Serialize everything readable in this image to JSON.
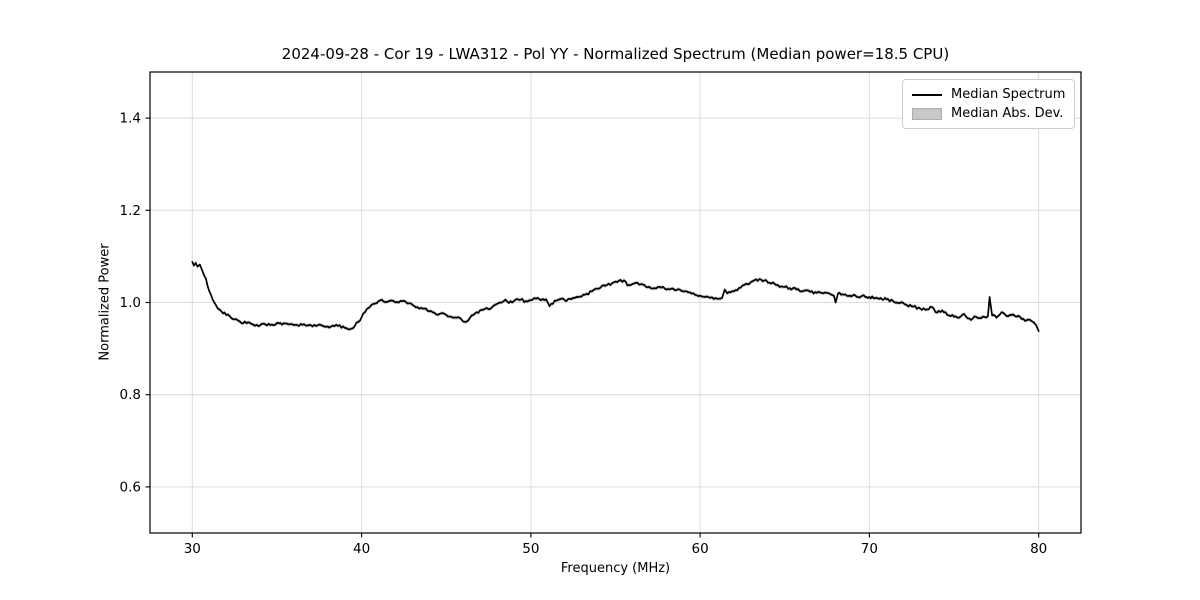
{
  "chart_data": {
    "type": "line",
    "title": "2024-09-28 - Cor 19 - LWA312 - Pol YY - Normalized Spectrum (Median power=18.5 CPU)",
    "xlabel": "Frequency (MHz)",
    "ylabel": "Normalized Power",
    "xlim": [
      27.5,
      82.5
    ],
    "ylim": [
      0.5,
      1.5
    ],
    "grid": true,
    "x_ticks": [
      {
        "v": 30,
        "label": "30"
      },
      {
        "v": 40,
        "label": "40"
      },
      {
        "v": 50,
        "label": "50"
      },
      {
        "v": 60,
        "label": "60"
      },
      {
        "v": 70,
        "label": "70"
      },
      {
        "v": 80,
        "label": "80"
      }
    ],
    "y_ticks": [
      {
        "v": 0.6,
        "label": "0.6"
      },
      {
        "v": 0.8,
        "label": "0.8"
      },
      {
        "v": 1.0,
        "label": "1.0"
      },
      {
        "v": 1.2,
        "label": "1.2"
      },
      {
        "v": 1.4,
        "label": "1.4"
      }
    ],
    "legend": {
      "position": "upper right",
      "entries": [
        {
          "label": "Median Spectrum",
          "type": "line",
          "color": "#000000"
        },
        {
          "label": "Median Abs. Dev.",
          "type": "patch",
          "color": "#c9c9c9"
        }
      ]
    },
    "colors": {
      "line": "#000000",
      "grid": "#dcdcdc",
      "spine": "#000000",
      "mad_fill": "#c9c9c9",
      "tick": "#000000",
      "background": "#ffffff"
    },
    "mad_halfwidth": 0.004,
    "noise_amplitude": 0.0032,
    "series": [
      {
        "name": "Median Spectrum",
        "color": "#000000",
        "points": [
          [
            30.0,
            1.088
          ],
          [
            30.1,
            1.08
          ],
          [
            30.2,
            1.086
          ],
          [
            30.3,
            1.078
          ],
          [
            30.45,
            1.082
          ],
          [
            30.6,
            1.068
          ],
          [
            30.8,
            1.052
          ],
          [
            31.0,
            1.025
          ],
          [
            31.3,
            1.0
          ],
          [
            31.6,
            0.985
          ],
          [
            32.0,
            0.973
          ],
          [
            32.4,
            0.964
          ],
          [
            32.8,
            0.959
          ],
          [
            33.2,
            0.955
          ],
          [
            33.6,
            0.952
          ],
          [
            34.0,
            0.95
          ],
          [
            34.3,
            0.953
          ],
          [
            34.6,
            0.951
          ],
          [
            35.0,
            0.956
          ],
          [
            35.3,
            0.952
          ],
          [
            35.6,
            0.954
          ],
          [
            36.0,
            0.951
          ],
          [
            36.3,
            0.949
          ],
          [
            36.6,
            0.953
          ],
          [
            37.0,
            0.951
          ],
          [
            37.3,
            0.949
          ],
          [
            37.6,
            0.951
          ],
          [
            38.0,
            0.948
          ],
          [
            38.3,
            0.95
          ],
          [
            38.6,
            0.949
          ],
          [
            39.0,
            0.945
          ],
          [
            39.3,
            0.942
          ],
          [
            39.6,
            0.949
          ],
          [
            39.8,
            0.958
          ],
          [
            40.0,
            0.968
          ],
          [
            40.2,
            0.979
          ],
          [
            40.4,
            0.988
          ],
          [
            40.7,
            0.997
          ],
          [
            41.0,
            1.003
          ],
          [
            41.2,
            1.006
          ],
          [
            41.5,
            1.001
          ],
          [
            41.8,
            1.004
          ],
          [
            42.1,
            1.001
          ],
          [
            42.4,
            1.003
          ],
          [
            42.7,
            0.998
          ],
          [
            43.0,
            0.995
          ],
          [
            43.3,
            0.99
          ],
          [
            43.6,
            0.987
          ],
          [
            44.0,
            0.981
          ],
          [
            44.3,
            0.978
          ],
          [
            44.6,
            0.975
          ],
          [
            45.0,
            0.973
          ],
          [
            45.3,
            0.969
          ],
          [
            45.6,
            0.967
          ],
          [
            45.9,
            0.963
          ],
          [
            46.1,
            0.958
          ],
          [
            46.3,
            0.961
          ],
          [
            46.5,
            0.972
          ],
          [
            46.8,
            0.979
          ],
          [
            47.1,
            0.984
          ],
          [
            47.4,
            0.988
          ],
          [
            47.6,
            0.986
          ],
          [
            47.9,
            0.995
          ],
          [
            48.2,
            1.0
          ],
          [
            48.5,
            1.006
          ],
          [
            48.7,
            0.999
          ],
          [
            49.0,
            1.003
          ],
          [
            49.4,
            1.006
          ],
          [
            49.7,
            1.003
          ],
          [
            50.0,
            1.005
          ],
          [
            50.3,
            1.008
          ],
          [
            50.6,
            1.005
          ],
          [
            50.9,
            1.007
          ],
          [
            51.1,
            0.992
          ],
          [
            51.4,
            1.004
          ],
          [
            51.7,
            1.007
          ],
          [
            52.0,
            1.005
          ],
          [
            52.3,
            1.008
          ],
          [
            52.6,
            1.01
          ],
          [
            52.9,
            1.013
          ],
          [
            53.2,
            1.017
          ],
          [
            53.6,
            1.024
          ],
          [
            54.0,
            1.03
          ],
          [
            54.4,
            1.036
          ],
          [
            54.8,
            1.042
          ],
          [
            55.2,
            1.047
          ],
          [
            55.5,
            1.048
          ],
          [
            55.7,
            1.037
          ],
          [
            56.0,
            1.04
          ],
          [
            56.3,
            1.043
          ],
          [
            56.6,
            1.039
          ],
          [
            57.0,
            1.034
          ],
          [
            57.3,
            1.031
          ],
          [
            57.6,
            1.034
          ],
          [
            58.0,
            1.028
          ],
          [
            58.3,
            1.03
          ],
          [
            58.6,
            1.027
          ],
          [
            59.0,
            1.024
          ],
          [
            59.3,
            1.022
          ],
          [
            59.6,
            1.02
          ],
          [
            60.0,
            1.015
          ],
          [
            60.3,
            1.012
          ],
          [
            60.6,
            1.01
          ],
          [
            61.0,
            1.008
          ],
          [
            61.3,
            1.01
          ],
          [
            61.45,
            1.028
          ],
          [
            61.6,
            1.02
          ],
          [
            62.0,
            1.024
          ],
          [
            62.4,
            1.032
          ],
          [
            62.8,
            1.04
          ],
          [
            63.2,
            1.048
          ],
          [
            63.5,
            1.051
          ],
          [
            63.8,
            1.048
          ],
          [
            64.1,
            1.043
          ],
          [
            64.5,
            1.038
          ],
          [
            64.9,
            1.034
          ],
          [
            65.3,
            1.031
          ],
          [
            65.7,
            1.028
          ],
          [
            66.1,
            1.025
          ],
          [
            66.5,
            1.023
          ],
          [
            66.9,
            1.021
          ],
          [
            67.3,
            1.02
          ],
          [
            67.7,
            1.018
          ],
          [
            67.9,
            1.015
          ],
          [
            68.0,
            1.0
          ],
          [
            68.15,
            1.02
          ],
          [
            68.5,
            1.017
          ],
          [
            69.0,
            1.015
          ],
          [
            69.5,
            1.013
          ],
          [
            70.0,
            1.012
          ],
          [
            70.5,
            1.009
          ],
          [
            71.0,
            1.007
          ],
          [
            71.4,
            1.003
          ],
          [
            71.8,
            0.999
          ],
          [
            72.2,
            0.995
          ],
          [
            72.6,
            0.991
          ],
          [
            73.0,
            0.987
          ],
          [
            73.4,
            0.985
          ],
          [
            73.7,
            0.99
          ],
          [
            74.0,
            0.978
          ],
          [
            74.3,
            0.983
          ],
          [
            74.7,
            0.972
          ],
          [
            75.0,
            0.969
          ],
          [
            75.3,
            0.967
          ],
          [
            75.6,
            0.975
          ],
          [
            76.0,
            0.962
          ],
          [
            76.3,
            0.969
          ],
          [
            76.6,
            0.966
          ],
          [
            77.0,
            0.97
          ],
          [
            77.1,
            1.012
          ],
          [
            77.25,
            0.972
          ],
          [
            77.5,
            0.967
          ],
          [
            77.9,
            0.978
          ],
          [
            78.2,
            0.97
          ],
          [
            78.5,
            0.974
          ],
          [
            78.8,
            0.971
          ],
          [
            79.0,
            0.964
          ],
          [
            79.2,
            0.96
          ],
          [
            79.5,
            0.962
          ],
          [
            79.7,
            0.957
          ],
          [
            79.85,
            0.951
          ],
          [
            80.0,
            0.938
          ]
        ]
      }
    ]
  }
}
